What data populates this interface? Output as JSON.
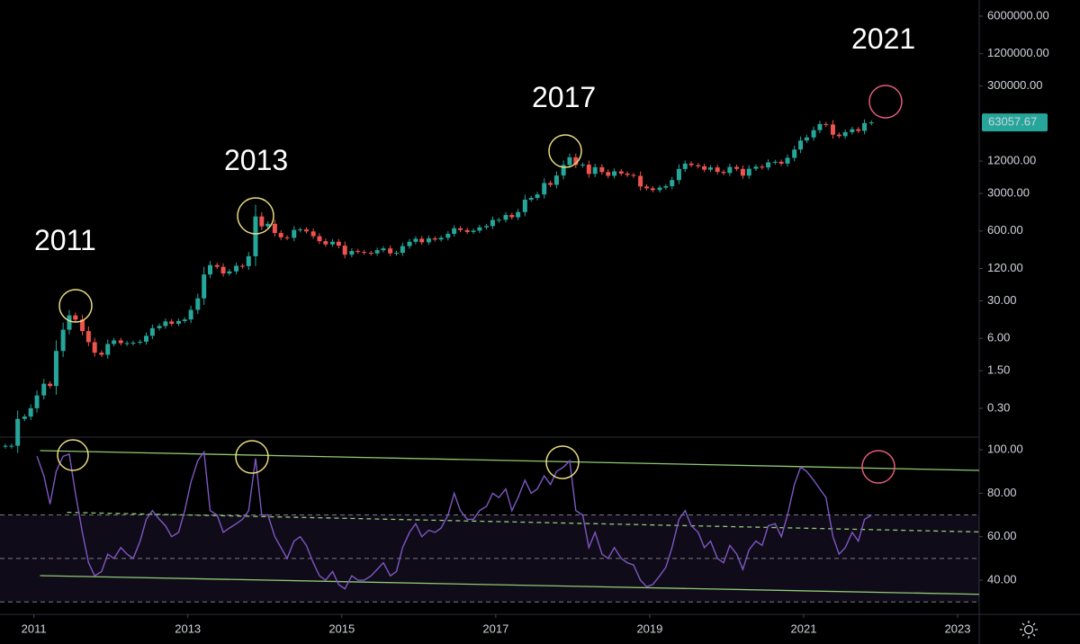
{
  "chart_data": [
    {
      "type": "candlestick",
      "log_scale": true,
      "up_color": "#26a69a",
      "down_color": "#ef5350",
      "xlim": [
        2010.56,
        2023.28
      ],
      "ylim": [
        0.087,
        12000000
      ],
      "yticks": [
        {
          "value": 6000000,
          "label": "6000000.00"
        },
        {
          "value": 1200000,
          "label": "1200000.00"
        },
        {
          "value": 300000,
          "label": "300000.00"
        },
        {
          "value": 12000,
          "label": "12000.00"
        },
        {
          "value": 3000,
          "label": "3000.00"
        },
        {
          "value": 600,
          "label": "600.00"
        },
        {
          "value": 120,
          "label": "120.00"
        },
        {
          "value": 30,
          "label": "30.00"
        },
        {
          "value": 6,
          "label": "6.00"
        },
        {
          "value": 1.5,
          "label": "1.50"
        },
        {
          "value": 0.3,
          "label": "0.30"
        }
      ],
      "last_price": 63057.67,
      "annotations": [
        "2011",
        "2013",
        "2017",
        "2021"
      ],
      "x": [
        2010.63,
        2010.71,
        2010.79,
        2010.88,
        2010.96,
        2011.04,
        2011.13,
        2011.21,
        2011.29,
        2011.38,
        2011.46,
        2011.54,
        2011.63,
        2011.71,
        2011.79,
        2011.88,
        2011.96,
        2012.04,
        2012.13,
        2012.21,
        2012.29,
        2012.38,
        2012.46,
        2012.54,
        2012.63,
        2012.71,
        2012.79,
        2012.88,
        2012.96,
        2013.04,
        2013.13,
        2013.21,
        2013.29,
        2013.38,
        2013.46,
        2013.54,
        2013.63,
        2013.71,
        2013.79,
        2013.88,
        2013.96,
        2014.04,
        2014.13,
        2014.21,
        2014.29,
        2014.38,
        2014.46,
        2014.54,
        2014.63,
        2014.71,
        2014.79,
        2014.88,
        2014.96,
        2015.04,
        2015.13,
        2015.21,
        2015.29,
        2015.38,
        2015.46,
        2015.54,
        2015.63,
        2015.71,
        2015.79,
        2015.88,
        2015.96,
        2016.04,
        2016.13,
        2016.21,
        2016.29,
        2016.38,
        2016.46,
        2016.54,
        2016.63,
        2016.71,
        2016.79,
        2016.88,
        2016.96,
        2017.04,
        2017.13,
        2017.21,
        2017.29,
        2017.38,
        2017.46,
        2017.54,
        2017.63,
        2017.71,
        2017.79,
        2017.88,
        2017.96,
        2018.04,
        2018.13,
        2018.21,
        2018.29,
        2018.38,
        2018.46,
        2018.54,
        2018.63,
        2018.71,
        2018.79,
        2018.88,
        2018.96,
        2019.04,
        2019.13,
        2019.21,
        2019.29,
        2019.38,
        2019.46,
        2019.54,
        2019.63,
        2019.71,
        2019.79,
        2019.88,
        2019.96,
        2020.04,
        2020.13,
        2020.21,
        2020.29,
        2020.38,
        2020.46,
        2020.54,
        2020.63,
        2020.71,
        2020.79,
        2020.88,
        2020.96,
        2021.04,
        2021.13,
        2021.21,
        2021.29,
        2021.38,
        2021.46,
        2021.54,
        2021.63,
        2021.71,
        2021.79,
        2021.88
      ],
      "values": [
        0.06,
        0.06,
        0.19,
        0.21,
        0.3,
        0.52,
        0.86,
        0.78,
        3.5,
        8.7,
        16.1,
        13.4,
        8.2,
        5.1,
        3.25,
        2.97,
        4.72,
        5.5,
        4.9,
        4.9,
        5.0,
        5.2,
        6.7,
        9.3,
        10.2,
        12.4,
        11.2,
        12.6,
        13.5,
        20.4,
        33.4,
        93,
        139,
        129,
        97,
        106,
        135,
        133,
        203,
        1120,
        732,
        815,
        550,
        457,
        448,
        628,
        640,
        589,
        480,
        387,
        338,
        378,
        320,
        217,
        254,
        244,
        236,
        230,
        263,
        284,
        230,
        236,
        314,
        377,
        430,
        369,
        437,
        416,
        448,
        531,
        673,
        624,
        575,
        609,
        701,
        742,
        964,
        970,
        1190,
        1080,
        1350,
        2300,
        2480,
        2875,
        4700,
        4340,
        6470,
        10200,
        14150,
        10200,
        10300,
        6920,
        9240,
        7500,
        6400,
        7730,
        7030,
        6630,
        6370,
        4040,
        3740,
        3460,
        3850,
        4100,
        5320,
        8570,
        10800,
        10100,
        9600,
        8300,
        9150,
        7570,
        7200,
        9350,
        8600,
        6440,
        8660,
        9460,
        9140,
        11350,
        11650,
        10780,
        13800,
        19700,
        29000,
        33100,
        45200,
        58800,
        57700,
        37300,
        35000,
        41500,
        47100,
        43800,
        61300,
        63057.67
      ]
    },
    {
      "type": "line",
      "color": "#7e57c2",
      "xlim": [
        2010.56,
        2023.28
      ],
      "xticks": [
        2011,
        2013,
        2015,
        2017,
        2019,
        2021,
        2023
      ],
      "ylim": [
        24.3,
        105.4
      ],
      "yticks": [
        {
          "value": 100,
          "label": "100.00"
        },
        {
          "value": 80,
          "label": "80.00"
        },
        {
          "value": 60,
          "label": "60.00"
        },
        {
          "value": 40,
          "label": "40.00"
        }
      ],
      "levels": [
        70,
        50,
        30
      ],
      "trendlines": [
        {
          "x": [
            2011.08,
            2023.28
          ],
          "values": [
            99.6,
            90.5
          ],
          "dashed": false
        },
        {
          "x": [
            2011.08,
            2023.28
          ],
          "values": [
            42.1,
            33.5
          ],
          "dashed": false
        },
        {
          "x": [
            2011.43,
            2023.28
          ],
          "values": [
            71.2,
            62.2
          ],
          "dashed": true
        }
      ],
      "x": [
        2010.63,
        2010.71,
        2010.79,
        2010.88,
        2010.96,
        2011.04,
        2011.13,
        2011.21,
        2011.29,
        2011.38,
        2011.46,
        2011.54,
        2011.63,
        2011.71,
        2011.79,
        2011.88,
        2011.96,
        2012.04,
        2012.13,
        2012.21,
        2012.29,
        2012.38,
        2012.46,
        2012.54,
        2012.63,
        2012.71,
        2012.79,
        2012.88,
        2012.96,
        2013.04,
        2013.13,
        2013.21,
        2013.29,
        2013.38,
        2013.46,
        2013.54,
        2013.63,
        2013.71,
        2013.79,
        2013.88,
        2013.96,
        2014.04,
        2014.13,
        2014.21,
        2014.29,
        2014.38,
        2014.46,
        2014.54,
        2014.63,
        2014.71,
        2014.79,
        2014.88,
        2014.96,
        2015.04,
        2015.13,
        2015.21,
        2015.29,
        2015.38,
        2015.46,
        2015.54,
        2015.63,
        2015.71,
        2015.79,
        2015.88,
        2015.96,
        2016.04,
        2016.13,
        2016.21,
        2016.29,
        2016.38,
        2016.46,
        2016.54,
        2016.63,
        2016.71,
        2016.79,
        2016.88,
        2016.96,
        2017.04,
        2017.13,
        2017.21,
        2017.29,
        2017.38,
        2017.46,
        2017.54,
        2017.63,
        2017.71,
        2017.79,
        2017.88,
        2017.96,
        2018.04,
        2018.13,
        2018.21,
        2018.29,
        2018.38,
        2018.46,
        2018.54,
        2018.63,
        2018.71,
        2018.79,
        2018.88,
        2018.96,
        2019.04,
        2019.13,
        2019.21,
        2019.29,
        2019.38,
        2019.46,
        2019.54,
        2019.63,
        2019.71,
        2019.79,
        2019.88,
        2019.96,
        2020.04,
        2020.13,
        2020.21,
        2020.29,
        2020.38,
        2020.46,
        2020.54,
        2020.63,
        2020.71,
        2020.79,
        2020.88,
        2020.96,
        2021.04,
        2021.13,
        2021.21,
        2021.29,
        2021.38,
        2021.46,
        2021.54,
        2021.63,
        2021.71,
        2021.79,
        2021.88
      ],
      "values": [
        null,
        null,
        null,
        null,
        null,
        97,
        88,
        75,
        90,
        97,
        98,
        80,
        62,
        48,
        42,
        44,
        52,
        50,
        55,
        52,
        50,
        58,
        68,
        72,
        68,
        65,
        60,
        62,
        72,
        85,
        95,
        99,
        72,
        70,
        62,
        64,
        66,
        68,
        72,
        96,
        70,
        70,
        60,
        55,
        50,
        58,
        60,
        56,
        48,
        42,
        40,
        44,
        38,
        36,
        42,
        40,
        40,
        42,
        45,
        48,
        42,
        44,
        55,
        62,
        66,
        60,
        63,
        62,
        64,
        70,
        80,
        72,
        68,
        68,
        72,
        74,
        80,
        78,
        82,
        72,
        78,
        86,
        80,
        82,
        88,
        84,
        90,
        92,
        95,
        72,
        70,
        55,
        62,
        52,
        50,
        55,
        50,
        48,
        47,
        40,
        37,
        38,
        42,
        46,
        55,
        68,
        72,
        65,
        62,
        55,
        58,
        50,
        48,
        56,
        52,
        45,
        54,
        58,
        56,
        65,
        66,
        60,
        70,
        84,
        92,
        90,
        86,
        82,
        78,
        60,
        52,
        55,
        62,
        58,
        68,
        70
      ]
    }
  ]
}
